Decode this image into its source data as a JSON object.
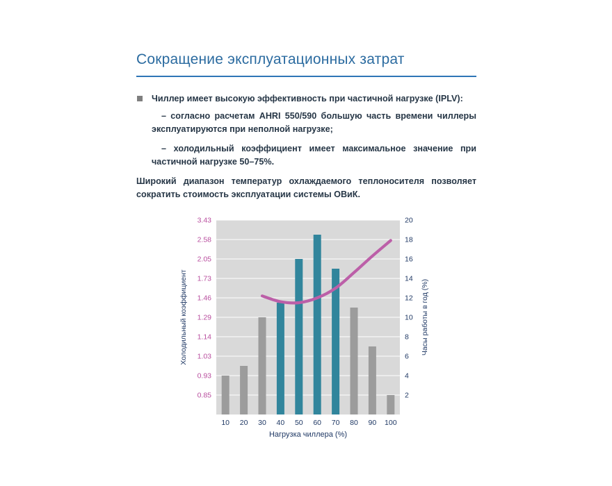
{
  "page": {
    "title": "Сокращение эксплуатационных затрат",
    "bullet": "Чиллер имеет высокую эффективность при частичной нагрузке (IPLV):",
    "sub_items": [
      "– согласно расчетам AHRI 550/590 большую часть времени чиллеры эксплуатируются при неполной нагрузке;",
      "– холодильный коэффициент имеет максимальное значение при частичной нагрузке 50–75%."
    ],
    "paragraph": "Широкий диапазон температур охлаждаемого теплоносителя позволяет сократить стоимость эксплуатации системы ОВиК."
  },
  "chart_data": {
    "type": "bar",
    "subtype": "dual-axis bar+line",
    "categories": [
      10,
      20,
      30,
      40,
      50,
      60,
      70,
      80,
      90,
      100
    ],
    "xlabel": "Нагрузка чиллера (%)",
    "left_axis": {
      "label": "Холодильный коэффициент",
      "ticks": [
        "3.43",
        "2.58",
        "2.05",
        "1.73",
        "1.46",
        "1.29",
        "1.14",
        "1.03",
        "0.93",
        "0.85"
      ]
    },
    "right_axis": {
      "label": "Часы работы в год (%)",
      "ticks": [
        20,
        18,
        16,
        14,
        12,
        10,
        8,
        6,
        4,
        2
      ],
      "min": 0,
      "max": 20
    },
    "series": [
      {
        "name": "Часы работы в год (%)",
        "type": "bar",
        "axis": "right",
        "values": [
          4,
          5,
          10,
          11.5,
          16,
          18.5,
          15,
          11,
          7,
          2
        ],
        "bar_colors": [
          "bar_gray",
          "bar_gray",
          "bar_gray",
          "bar_teal",
          "bar_teal",
          "bar_teal",
          "bar_teal",
          "bar_gray",
          "bar_gray",
          "bar_gray"
        ]
      },
      {
        "name": "Холодильный коэффициент",
        "type": "line",
        "axis": "left",
        "x": [
          30,
          40,
          50,
          60,
          70,
          80,
          90,
          100
        ],
        "values_right_scale": [
          12.2,
          11.6,
          11.5,
          12.0,
          13.0,
          14.6,
          16.3,
          17.9
        ],
        "values_left_approx": [
          1.49,
          1.43,
          1.42,
          1.46,
          1.6,
          1.83,
          2.13,
          2.55
        ]
      }
    ],
    "grid": true,
    "legend": false,
    "colors": {
      "bar_gray": "#9c9c9c",
      "bar_teal": "#31859c",
      "line": "#bc5fa8",
      "plot_bg": "#d9d9d9",
      "grid": "#ffffff",
      "tick_left": "#b94f9f",
      "tick_dark": "#1f3864"
    }
  },
  "theme": {
    "title_color": "#2b6ba0",
    "rule_color": "#2e75b6",
    "text_color": "#263646",
    "bullet_color": "#7f7f7f"
  }
}
